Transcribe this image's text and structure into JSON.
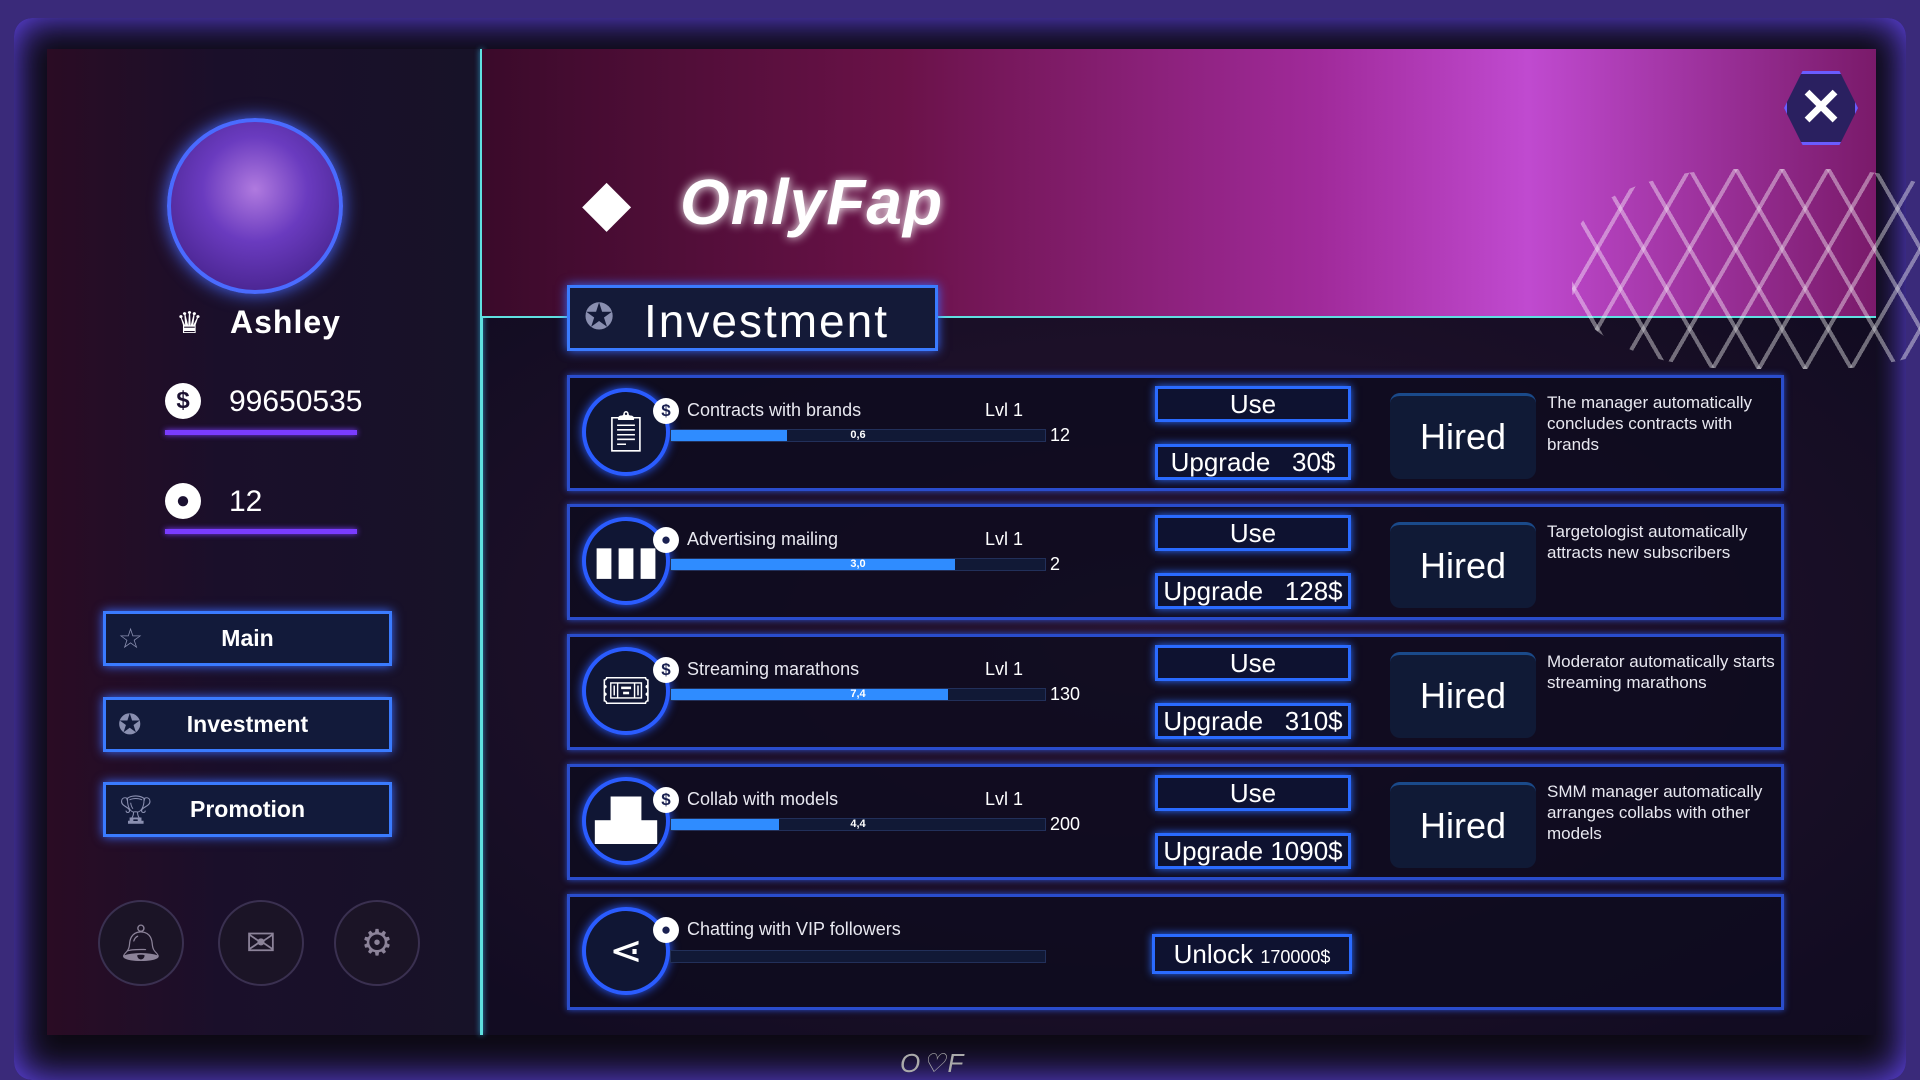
{
  "app": {
    "logo": "OnlyFap",
    "bezel_logo": "O♡F",
    "close_icon": "close-icon"
  },
  "profile": {
    "name": "Ashley",
    "money": "99650535",
    "subscribers": "12"
  },
  "nav": [
    {
      "label": "Main",
      "icon": "star-icon"
    },
    {
      "label": "Investment",
      "icon": "badge-icon"
    },
    {
      "label": "Promotion",
      "icon": "trophy-icon"
    }
  ],
  "bottom_icons": [
    "bell-icon",
    "mail-icon",
    "gear-icon"
  ],
  "page": {
    "title": "Investment"
  },
  "colors": {
    "accent": "#2a6bff",
    "bar_fill": "#2f8cff",
    "underline": "#7a3cff"
  },
  "investments": [
    {
      "title": "Contracts with brands",
      "level": "Lvl 1",
      "badge": "$",
      "icon": "clipboard-star-icon",
      "bar_value": "0,6",
      "max": "12",
      "progress": 0.31,
      "use": "Use",
      "upgrade": "Upgrade   30$",
      "status": "Hired",
      "desc": "The manager automatically concludes contracts with brands"
    },
    {
      "title": "Advertising mailing",
      "level": "Lvl 1",
      "badge": "user",
      "icon": "sound-wave-icon",
      "bar_value": "3,0",
      "max": "2",
      "progress": 0.76,
      "use": "Use",
      "upgrade": "Upgrade   128$",
      "status": "Hired",
      "desc": "Targetologist automatically attracts new subscribers"
    },
    {
      "title": "Streaming marathons",
      "level": "Lvl 1",
      "badge": "$",
      "icon": "ticket-icon",
      "bar_value": "7,4",
      "max": "130",
      "progress": 0.74,
      "use": "Use",
      "upgrade": "Upgrade   310$",
      "status": "Hired",
      "desc": "Moderator automatically starts streaming marathons"
    },
    {
      "title": "Collab with models",
      "level": "Lvl 1",
      "badge": "$",
      "icon": "podium-icon",
      "bar_value": "4,4",
      "max": "200",
      "progress": 0.29,
      "use": "Use",
      "upgrade": "Upgrade 1090$",
      "status": "Hired",
      "desc": "SMM manager automatically arranges collabs with other models"
    }
  ],
  "locked": {
    "title": "Chatting with VIP followers",
    "badge": "user",
    "icon": "share-icon",
    "progress": 0,
    "unlock": "Unlock",
    "price": "170000$"
  }
}
